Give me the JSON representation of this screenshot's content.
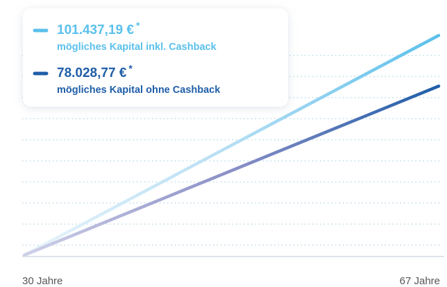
{
  "chart_data": {
    "type": "line",
    "x": [
      30,
      67
    ],
    "xlim": [
      30,
      67
    ],
    "xticks": [
      {
        "value": 30,
        "label": "30 Jahre"
      },
      {
        "value": 67,
        "label": "67 Jahre"
      }
    ],
    "ylim": [
      0,
      105000
    ],
    "footnote_marker": "*",
    "series": [
      {
        "name": "mögliches Kapital inkl. Cashback",
        "color": "#5bc0eb",
        "values": [
          0,
          101437.19
        ],
        "value_labels": [
          null,
          "101.437,19 €"
        ]
      },
      {
        "name": "mögliches Kapital ohne Cashback",
        "color": "#1f5ea8",
        "values": [
          0,
          78028.77
        ],
        "value_labels": [
          null,
          "78.028,77 €"
        ]
      }
    ]
  }
}
